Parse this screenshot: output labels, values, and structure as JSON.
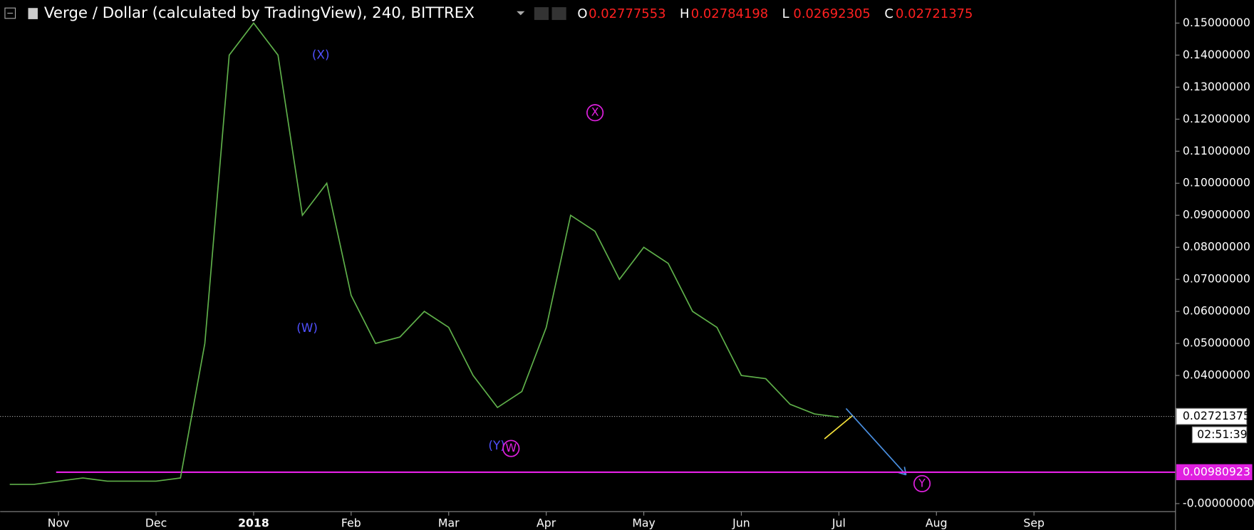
{
  "chart_data": {
    "type": "line",
    "title": "Verge / Dollar (calculated by TradingView), 240, BITTREX",
    "ohlc": {
      "labels": [
        "O",
        "H",
        "L",
        "C"
      ],
      "values": [
        0.02777553,
        0.02784198,
        0.02692305,
        0.02721375
      ]
    },
    "categories": [
      null,
      null,
      "Nov",
      null,
      null,
      null,
      "Dec",
      null,
      null,
      null,
      "2018",
      null,
      null,
      null,
      "Feb",
      null,
      null,
      null,
      "Mar",
      null,
      null,
      null,
      "Apr",
      null,
      null,
      null,
      "May",
      null,
      null,
      null,
      "Jun",
      null,
      null,
      null,
      "Jul",
      null,
      null,
      null,
      "Aug",
      null,
      null,
      null,
      "Sep",
      null,
      null,
      null
    ],
    "series": [
      {
        "color": "#5fb04a",
        "values": [
          0.006,
          0.006,
          0.007,
          0.008,
          0.007,
          0.007,
          0.007,
          0.008,
          0.05,
          0.14,
          0.15,
          0.14,
          0.09,
          0.1,
          0.065,
          0.05,
          0.052,
          0.06,
          0.055,
          0.04,
          0.03,
          0.035,
          0.055,
          0.09,
          0.085,
          0.07,
          0.08,
          0.075,
          0.06,
          0.055,
          0.04,
          0.039,
          0.031,
          0.028,
          0.027,
          null,
          null,
          null,
          null,
          null,
          null,
          null,
          null,
          null,
          null,
          null
        ]
      }
    ],
    "ylim": [
      -0.0025,
      0.1572
    ],
    "yticks": [
      {
        "value": 0,
        "label": "-0.00000000"
      },
      {
        "value": 0.04,
        "label": "0.04000000"
      },
      {
        "value": 0.05,
        "label": "0.05000000"
      },
      {
        "value": 0.06,
        "label": "0.06000000"
      },
      {
        "value": 0.07,
        "label": "0.07000000"
      },
      {
        "value": 0.08,
        "label": "0.08000000"
      },
      {
        "value": 0.09,
        "label": "0.09000000"
      },
      {
        "value": 0.1,
        "label": "0.10000000"
      },
      {
        "value": 0.11,
        "label": "0.11000000"
      },
      {
        "value": 0.12,
        "label": "0.12000000"
      },
      {
        "value": 0.13,
        "label": "0.13000000"
      },
      {
        "value": 0.14,
        "label": "0.14000000"
      },
      {
        "value": 0.15,
        "label": "0.15000000"
      }
    ],
    "last_price": 0.02721375,
    "countdown": "02:51:39",
    "support_level": 0.00980923,
    "annotations": [
      "(X)",
      "(W)",
      "(Y)",
      "W",
      "X",
      "Y"
    ]
  }
}
